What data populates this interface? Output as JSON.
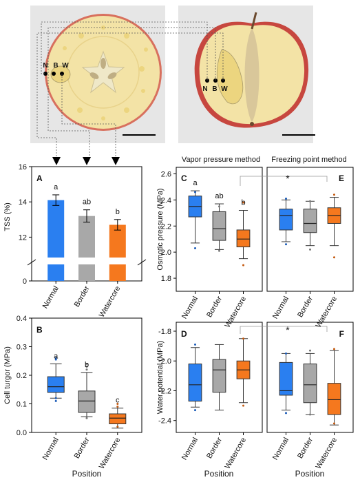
{
  "colors": {
    "normal": "#2a7ff0",
    "border": "#a8a8a8",
    "watercore": "#f5781e",
    "flesh": "#f3e3a6",
    "skin": "#d45d55",
    "photo_bg": "#e6e6e6",
    "seed": "#bfae84"
  },
  "photos": {
    "left_labels": [
      "N",
      "B",
      "W"
    ],
    "right_labels": [
      "N",
      "B",
      "W"
    ]
  },
  "methods": {
    "vapor": "Vapor pressure method",
    "freezing": "Freezing point method"
  },
  "chart_data": [
    {
      "panel": "A",
      "type": "bar",
      "categories": [
        "Normal",
        "Border",
        "Watercore"
      ],
      "values": [
        14.1,
        13.2,
        12.7
      ],
      "errors": [
        0.3,
        0.35,
        0.3
      ],
      "letters": [
        "a",
        "ab",
        "b"
      ],
      "ylabel": "TSS (%)",
      "ylim_upper": [
        11,
        16
      ],
      "yticks_upper": [
        "12",
        "14",
        "16"
      ],
      "yticks_lower": [
        "0"
      ],
      "axis_break": true
    },
    {
      "panel": "B",
      "type": "box",
      "categories": [
        "Normal",
        "Border",
        "Watercore"
      ],
      "boxes": [
        {
          "min": 0.12,
          "q1": 0.14,
          "median": 0.16,
          "q3": 0.195,
          "max": 0.24,
          "outliers": [
            0.11,
            0.12,
            0.255,
            0.26
          ]
        },
        {
          "min": 0.055,
          "q1": 0.07,
          "median": 0.11,
          "q3": 0.145,
          "max": 0.21,
          "outliers": [
            0.05,
            0.22,
            0.23,
            0.24
          ]
        },
        {
          "min": 0.015,
          "q1": 0.03,
          "median": 0.05,
          "q3": 0.065,
          "max": 0.085,
          "outliers": [
            0.02,
            0.09,
            0.1
          ]
        }
      ],
      "letters": [
        "a",
        "b",
        "c"
      ],
      "ylabel": "Cell turgor (MPa)",
      "xlabel": "Position",
      "ylim": [
        0,
        0.4
      ],
      "yticks": [
        "0.0",
        "0.1",
        "0.2",
        "0.3",
        "0.4"
      ]
    },
    {
      "panel": "C",
      "type": "box",
      "categories": [
        "Normal",
        "Border",
        "Watercore"
      ],
      "boxes": [
        {
          "min": 2.07,
          "q1": 2.27,
          "median": 2.35,
          "q3": 2.43,
          "max": 2.47,
          "outliers": [
            2.03,
            2.46
          ]
        },
        {
          "min": 2.02,
          "q1": 2.09,
          "median": 2.18,
          "q3": 2.31,
          "max": 2.37,
          "outliers": [
            2.01,
            2.35
          ]
        },
        {
          "min": 1.95,
          "q1": 2.04,
          "median": 2.1,
          "q3": 2.17,
          "max": 2.32,
          "outliers": [
            1.9,
            2.38
          ]
        }
      ],
      "letters": [
        "a",
        "ab",
        "b"
      ],
      "ylabel": "Osmotic pressure (MPa)",
      "ylim": [
        1.7,
        2.65
      ],
      "yticks": [
        "1.8",
        "2.0",
        "2.2",
        "2.4",
        "2.6"
      ]
    },
    {
      "panel": "E",
      "type": "box",
      "categories": [
        "Normal",
        "Border",
        "Watercore"
      ],
      "boxes": [
        {
          "min": 2.08,
          "q1": 2.17,
          "median": 2.28,
          "q3": 2.33,
          "max": 2.4,
          "outliers": [
            2.06,
            2.41
          ]
        },
        {
          "min": 2.05,
          "q1": 2.15,
          "median": 2.22,
          "q3": 2.33,
          "max": 2.39,
          "outliers": [
            2.02,
            2.39
          ]
        },
        {
          "min": 2.05,
          "q1": 2.22,
          "median": 2.28,
          "q3": 2.34,
          "max": 2.42,
          "outliers": [
            1.96,
            2.44
          ]
        }
      ],
      "significance": "*",
      "ylim": [
        1.7,
        2.65
      ]
    },
    {
      "panel": "D",
      "type": "box",
      "categories": [
        "Normal",
        "Border",
        "Watercore"
      ],
      "boxes": [
        {
          "min": -2.31,
          "q1": -2.27,
          "median": -2.16,
          "q3": -2.02,
          "max": -1.91,
          "outliers": [
            -2.33,
            -1.89
          ]
        },
        {
          "min": -2.33,
          "q1": -2.21,
          "median": -2.06,
          "q3": -1.99,
          "max": -1.89,
          "outliers": []
        },
        {
          "min": -2.28,
          "q1": -2.12,
          "median": -2.06,
          "q3": -2.0,
          "max": -1.85,
          "outliers": [
            -2.3,
            -1.85
          ]
        }
      ],
      "ylabel": "Water potential (MPa)",
      "xlabel": "Position",
      "ylim": [
        -2.48,
        -1.74
      ],
      "yticks": [
        "-1.8",
        "-2.0",
        "-2.2",
        "-2.4"
      ]
    },
    {
      "panel": "F",
      "type": "box",
      "categories": [
        "Normal",
        "Border",
        "Watercore"
      ],
      "boxes": [
        {
          "min": -2.33,
          "q1": -2.23,
          "median": -2.2,
          "q3": -2.01,
          "max": -1.95,
          "outliers": [
            -2.35,
            -1.95
          ]
        },
        {
          "min": -2.36,
          "q1": -2.28,
          "median": -2.16,
          "q3": -2.02,
          "max": -1.95,
          "outliers": [
            -2.36,
            -1.93
          ]
        },
        {
          "min": -2.43,
          "q1": -2.36,
          "median": -2.26,
          "q3": -2.15,
          "max": -1.93,
          "outliers": [
            -2.42,
            -1.92
          ]
        }
      ],
      "significance": "*",
      "xlabel": "Position",
      "ylim": [
        -2.48,
        -1.74
      ]
    }
  ]
}
